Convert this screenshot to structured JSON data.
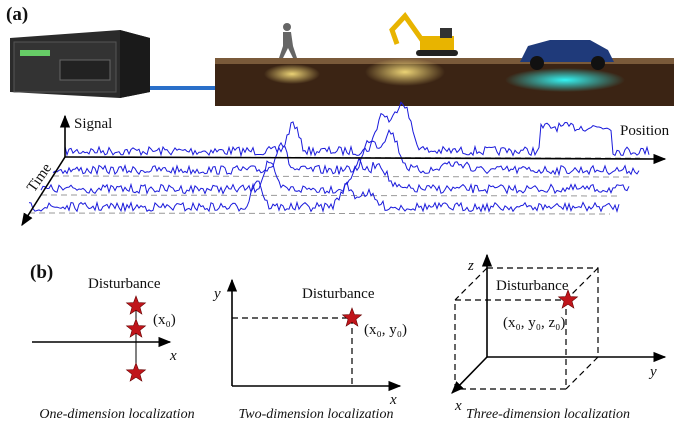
{
  "panel_a": {
    "label": "(a)",
    "axes": {
      "signal": "Signal",
      "position": "Position",
      "time": "Time"
    }
  },
  "panel_b": {
    "label": "(b)",
    "one_d": {
      "annotation": "Disturbance",
      "point": "(x₀)",
      "axis_x": "x",
      "caption": "One-dimension localization"
    },
    "two_d": {
      "annotation": "Disturbance",
      "point": "(x₀, y₀)",
      "axis_x": "x",
      "axis_y": "y",
      "caption": "Two-dimension localization"
    },
    "three_d": {
      "annotation": "Disturbance",
      "point": "(x₀, y₀, z₀)",
      "axis_x": "x",
      "axis_y": "y",
      "axis_z": "z",
      "caption": "Three-dimension localization"
    }
  }
}
